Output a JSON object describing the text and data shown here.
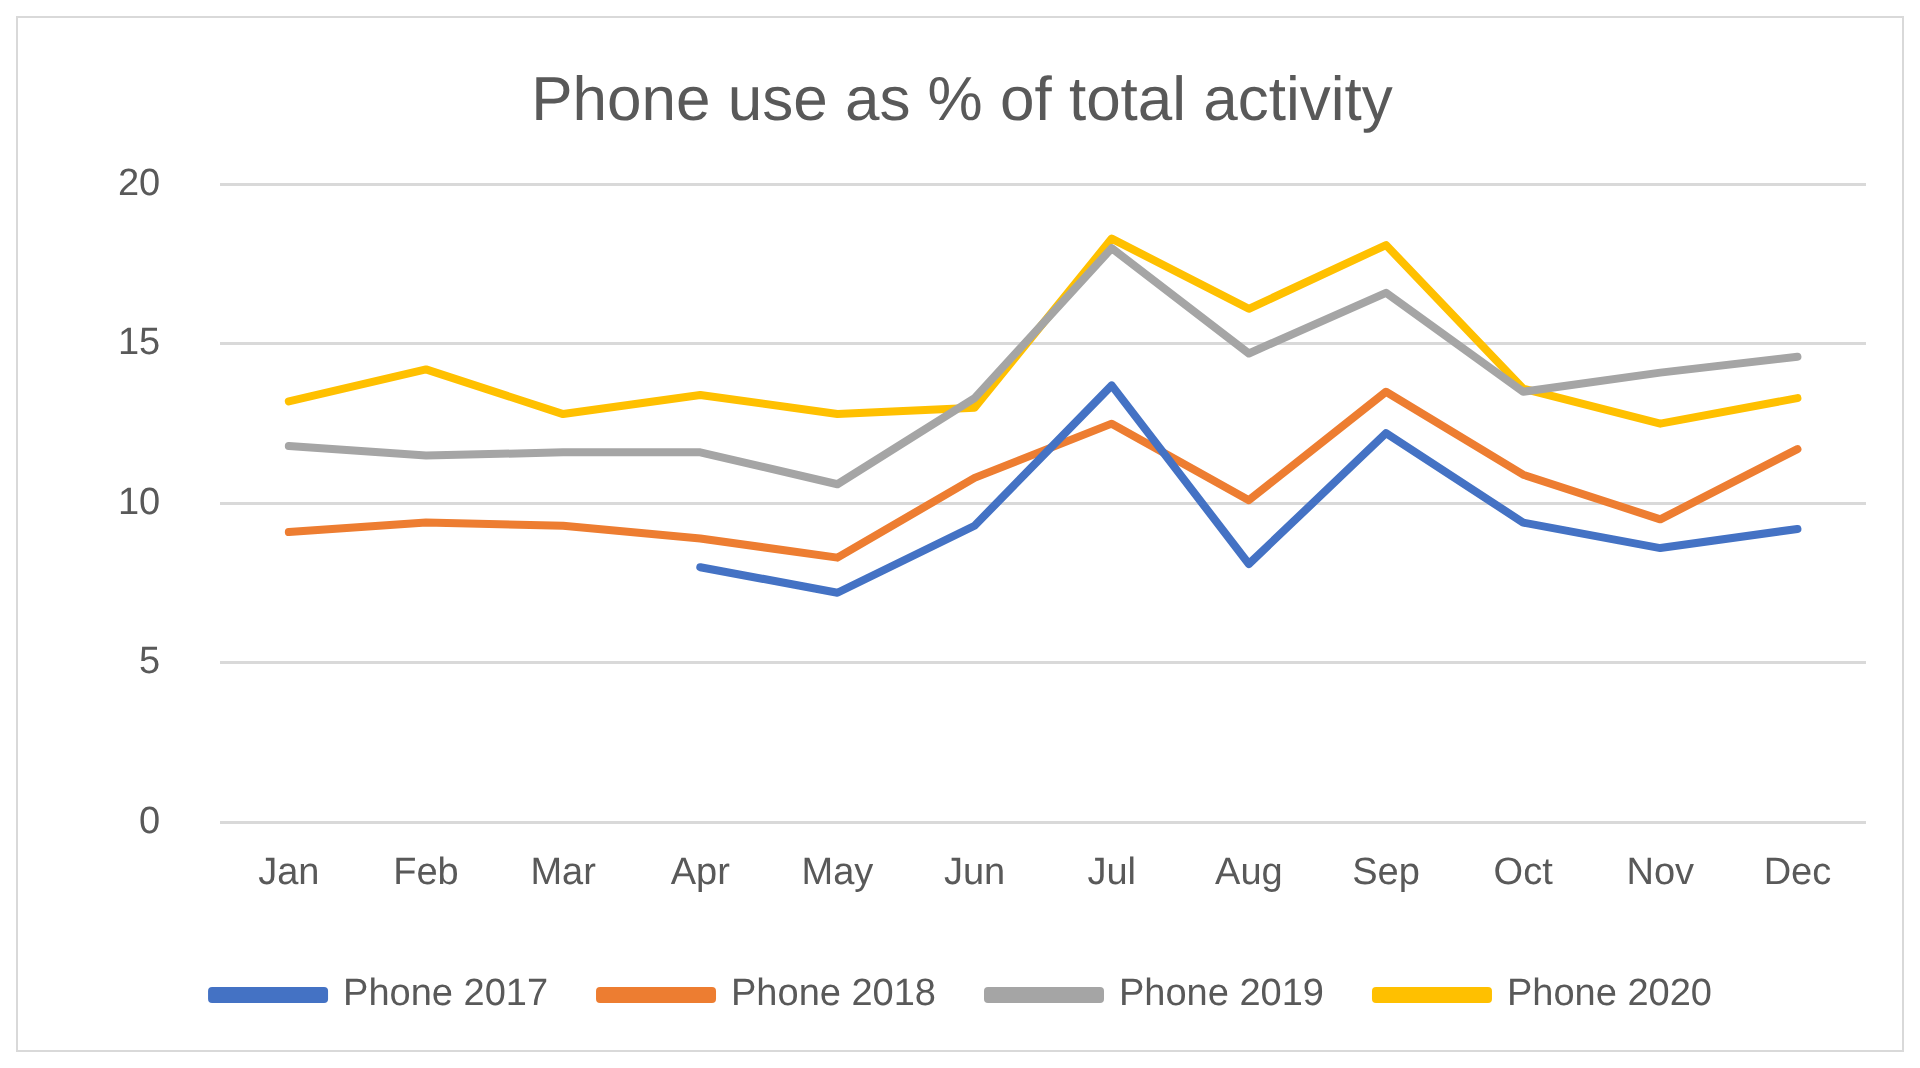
{
  "chart_data": {
    "type": "line",
    "title": "Phone use as % of total activity",
    "categories": [
      "Jan",
      "Feb",
      "Mar",
      "Apr",
      "May",
      "Jun",
      "Jul",
      "Aug",
      "Sep",
      "Oct",
      "Nov",
      "Dec"
    ],
    "series": [
      {
        "name": "Phone 2017",
        "color": "#4472c4",
        "values": [
          null,
          null,
          null,
          8.0,
          7.2,
          9.3,
          13.7,
          8.1,
          12.2,
          9.4,
          8.6,
          9.2
        ]
      },
      {
        "name": "Phone 2018",
        "color": "#ed7d31",
        "values": [
          9.1,
          9.4,
          9.3,
          8.9,
          8.3,
          10.8,
          12.5,
          10.1,
          13.5,
          10.9,
          9.5,
          11.7
        ]
      },
      {
        "name": "Phone 2019",
        "color": "#a5a5a5",
        "values": [
          11.8,
          11.5,
          11.6,
          11.6,
          10.6,
          13.3,
          18.0,
          14.7,
          16.6,
          13.5,
          14.1,
          14.6
        ]
      },
      {
        "name": "Phone 2020",
        "color": "#ffc000",
        "values": [
          13.2,
          14.2,
          12.8,
          13.4,
          12.8,
          13.0,
          18.3,
          16.1,
          18.1,
          13.6,
          12.5,
          13.3
        ]
      }
    ],
    "ylim": [
      0,
      20
    ],
    "yticks": [
      0,
      5,
      10,
      15,
      20
    ],
    "grid": "y",
    "legend": "bottom",
    "marker": "none",
    "line_style": "solid"
  }
}
